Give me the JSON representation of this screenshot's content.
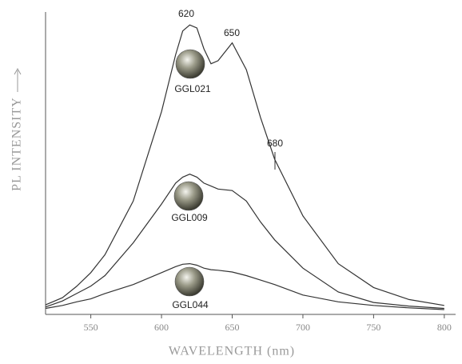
{
  "chart_data": {
    "type": "line",
    "x_label": "WAVELENGTH (nm)",
    "y_label": "PL INTENSITY",
    "x": [
      518,
      530,
      540,
      550,
      560,
      580,
      600,
      610,
      615,
      620,
      625,
      630,
      635,
      640,
      650,
      660,
      670,
      680,
      700,
      725,
      750,
      775,
      800
    ],
    "series": [
      {
        "name": "GGL021",
        "color": "#333333",
        "values": [
          3.2,
          5.6,
          9.4,
          14,
          20,
          38,
          68,
          87,
          95,
          97,
          96,
          89,
          84,
          85,
          91,
          82,
          66,
          52,
          33,
          17,
          9,
          5,
          3
        ]
      },
      {
        "name": "GGL009",
        "color": "#333333",
        "values": [
          2.5,
          4.5,
          7,
          9.5,
          13,
          24,
          37,
          44,
          46,
          47,
          46,
          44,
          43,
          42,
          41.5,
          38,
          31,
          25,
          15.5,
          7.5,
          4,
          2.8,
          2
        ]
      },
      {
        "name": "GGL044",
        "color": "#333333",
        "values": [
          2,
          3,
          4.2,
          5.2,
          7,
          10,
          14,
          16,
          16.8,
          17,
          16.5,
          15.5,
          15,
          14.8,
          14.2,
          13,
          11.5,
          10,
          6.5,
          4.2,
          3,
          2.2,
          1.6
        ]
      }
    ],
    "annotations": [
      "620",
      "650",
      "680"
    ],
    "xlim": [
      518,
      808
    ],
    "xticks": [
      550,
      600,
      650,
      700,
      750,
      800
    ],
    "ylim": [
      0,
      100
    ]
  }
}
